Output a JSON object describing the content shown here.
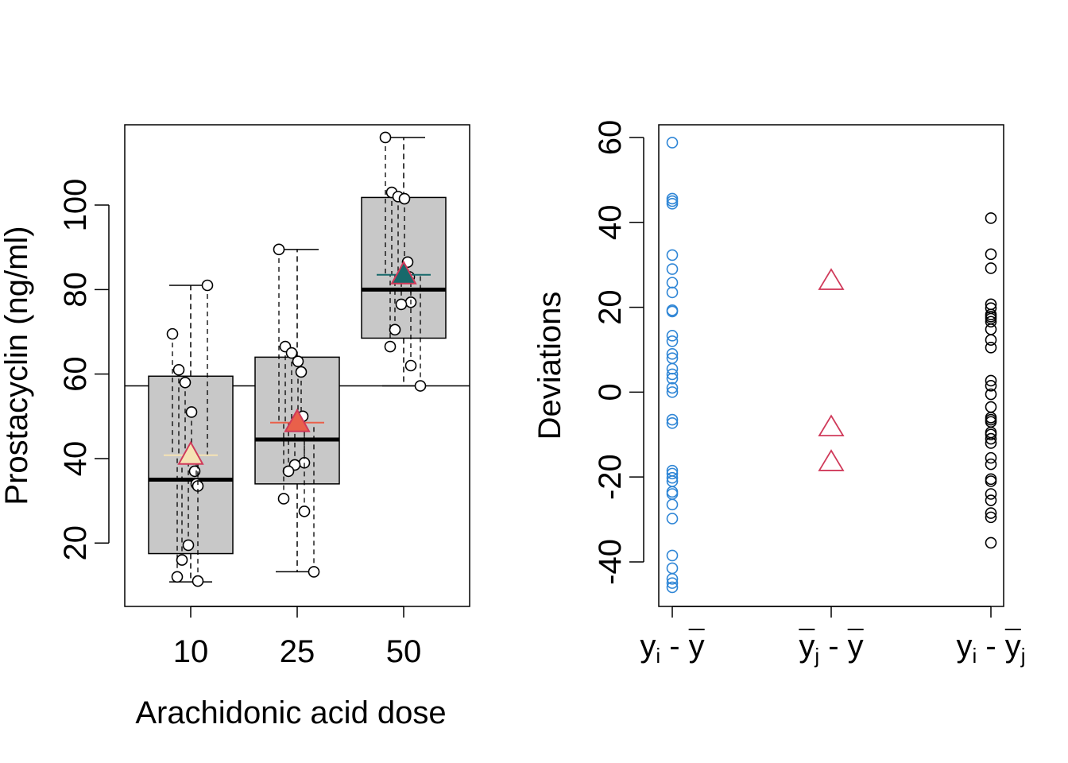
{
  "colors": {
    "box_fill": "#c8c8c8",
    "total_dev": "#2f86d6",
    "group_dev": "#d03a5a",
    "within_dev": "#000000",
    "mean_marker_10": "#f6e3b4",
    "mean_marker_25": "#e9604a",
    "mean_marker_50": "#17696b"
  },
  "chart_data": [
    {
      "type": "boxplot",
      "xlabel": "Arachidonic acid dose",
      "ylabel": "Prostacyclin (ng/ml)",
      "categories": [
        "10",
        "25",
        "50"
      ],
      "ylim": [
        5,
        119
      ],
      "yticks": [
        20,
        40,
        60,
        80,
        100
      ],
      "grand_mean": 57.2,
      "boxes": [
        {
          "label": "10",
          "q1": 17.5,
          "median": 35,
          "q3": 59.5,
          "whisker_low": 10.8,
          "whisker_high": 81,
          "mean": 40.8
        },
        {
          "label": "25",
          "q1": 34,
          "median": 44.5,
          "q3": 64,
          "whisker_low": 13.2,
          "whisker_high": 89.5,
          "mean": 48.5
        },
        {
          "label": "50",
          "q1": 68.5,
          "median": 80,
          "q3": 101.8,
          "whisker_low": 57.2,
          "whisker_high": 116,
          "mean": 83.5
        }
      ],
      "points": [
        {
          "group": "10",
          "values": [
            69.5,
            61,
            58,
            51,
            37,
            34,
            33.5,
            19.5,
            16,
            12,
            11,
            81
          ]
        },
        {
          "group": "25",
          "values": [
            89.5,
            66.5,
            65,
            63,
            60.5,
            50,
            39,
            38.5,
            37,
            30.5,
            27.5,
            13.2
          ]
        },
        {
          "group": "50",
          "values": [
            116,
            103,
            102,
            101.5,
            86.5,
            83,
            77,
            76.5,
            70.5,
            66.5,
            62,
            57.2
          ]
        }
      ]
    },
    {
      "type": "scatter",
      "ylabel": "Deviations",
      "ylim": [
        -50.5,
        63
      ],
      "yticks": [
        -40,
        -20,
        0,
        20,
        40,
        60
      ],
      "categories": [
        {
          "main": "y",
          "sub": "i",
          "sep": " - ",
          "main2": "y",
          "sub2": "",
          "bar1": false,
          "bar2": true
        },
        {
          "main": "y",
          "sub": "j",
          "sep": " - ",
          "main2": "y",
          "sub2": "",
          "bar1": true,
          "bar2": true
        },
        {
          "main": "y",
          "sub": "i",
          "sep": " - ",
          "main2": "y",
          "sub2": "j",
          "bar1": false,
          "bar2": true
        }
      ],
      "series": [
        {
          "marker": "circle",
          "color": "total_dev",
          "values": [
            58.8,
            45.6,
            45,
            44.4,
            32.3,
            29,
            25.8,
            23.5,
            19.3,
            19,
            13.3,
            12,
            9,
            8,
            5.5,
            4.2,
            3.2,
            1,
            0,
            -6.5,
            -7.3,
            -18.5,
            -19.2,
            -20.2,
            -21,
            -23.5,
            -24,
            -26.5,
            -29.8,
            -38.5,
            -41.5,
            -44,
            -45,
            -46
          ]
        },
        {
          "marker": "triangle",
          "color": "group_dev",
          "values": [
            26.3,
            -8.2,
            -16.4
          ]
        },
        {
          "marker": "circle",
          "color": "within_dev",
          "values": [
            41,
            32.5,
            29.2,
            20.7,
            19.8,
            18.3,
            17.8,
            17.3,
            16.6,
            14.8,
            12.3,
            10.5,
            2.7,
            1.5,
            -0.5,
            -3.5,
            -6,
            -6.5,
            -7,
            -9.5,
            -10,
            -11,
            -12,
            -15.5,
            -17,
            -20.5,
            -21,
            -24,
            -25.5,
            -28.5,
            -29.5,
            -35.5
          ]
        }
      ]
    }
  ]
}
